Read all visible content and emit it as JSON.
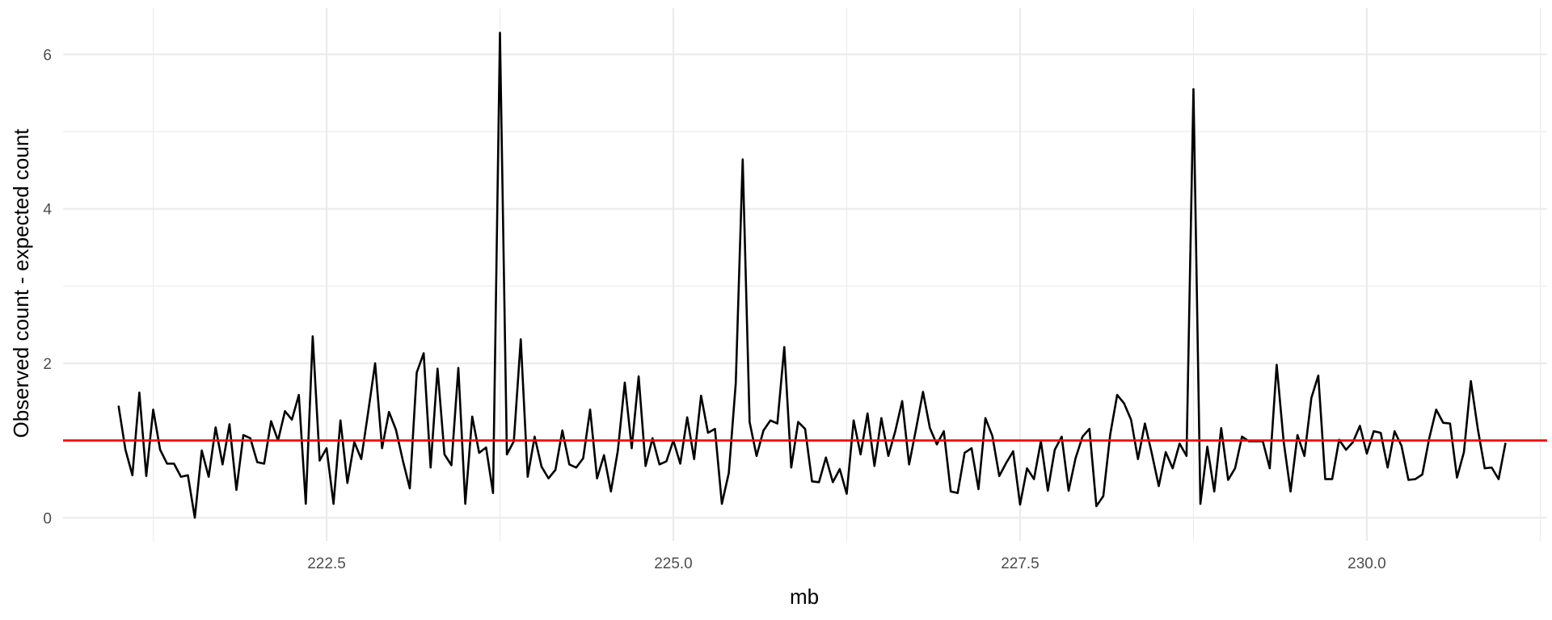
{
  "chart_data": {
    "type": "line",
    "title": "",
    "xlabel": "mb",
    "ylabel": "Observed count - expected count",
    "xlim": [
      220.6,
      231.3
    ],
    "ylim": [
      -0.3,
      6.6
    ],
    "x_ticks": [
      222.5,
      225.0,
      227.5,
      230.0
    ],
    "x_tick_labels": [
      "222.5",
      "225.0",
      "227.5",
      "230.0"
    ],
    "y_ticks": [
      0,
      2,
      4,
      6
    ],
    "y_tick_labels": [
      "0",
      "2",
      "4",
      "6"
    ],
    "grid": true,
    "theme": "minimal",
    "line_color": "#000000",
    "reference_line": {
      "y": 1,
      "color": "#ff0000"
    },
    "x_start": 221.0,
    "x_step": 0.05,
    "values": [
      1.45,
      0.88,
      0.55,
      1.62,
      0.54,
      1.4,
      0.88,
      0.7,
      0.7,
      0.53,
      0.55,
      0.0,
      0.87,
      0.53,
      1.17,
      0.69,
      1.21,
      0.36,
      1.07,
      1.03,
      0.72,
      0.7,
      1.25,
      1.0,
      1.38,
      1.27,
      1.59,
      0.18,
      2.35,
      0.74,
      0.9,
      0.18,
      1.26,
      0.45,
      0.98,
      0.76,
      1.37,
      2.0,
      0.9,
      1.37,
      1.14,
      0.74,
      0.38,
      1.88,
      2.13,
      0.65,
      1.93,
      0.82,
      0.68,
      1.94,
      0.18,
      1.31,
      0.84,
      0.91,
      0.32,
      6.28,
      0.82,
      0.99,
      2.31,
      0.53,
      1.05,
      0.66,
      0.51,
      0.62,
      1.13,
      0.69,
      0.65,
      0.77,
      1.4,
      0.51,
      0.81,
      0.34,
      0.87,
      1.75,
      0.9,
      1.83,
      0.67,
      1.03,
      0.69,
      0.73,
      1.0,
      0.7,
      1.3,
      0.76,
      1.58,
      1.1,
      1.15,
      0.18,
      0.58,
      1.74,
      4.64,
      1.24,
      0.8,
      1.13,
      1.26,
      1.22,
      2.21,
      0.65,
      1.24,
      1.15,
      0.47,
      0.46,
      0.78,
      0.46,
      0.63,
      0.31,
      1.26,
      0.82,
      1.35,
      0.67,
      1.29,
      0.8,
      1.12,
      1.51,
      0.69,
      1.15,
      1.63,
      1.16,
      0.95,
      1.12,
      0.34,
      0.32,
      0.84,
      0.9,
      0.37,
      1.29,
      1.06,
      0.54,
      0.71,
      0.86,
      0.17,
      0.64,
      0.5,
      0.99,
      0.35,
      0.88,
      1.05,
      0.35,
      0.77,
      1.05,
      1.15,
      0.15,
      0.28,
      1.08,
      1.59,
      1.48,
      1.27,
      0.76,
      1.22,
      0.83,
      0.41,
      0.85,
      0.64,
      0.96,
      0.8,
      5.55,
      0.18,
      0.92,
      0.34,
      1.16,
      0.49,
      0.64,
      1.05,
      0.99,
      0.99,
      0.99,
      0.64,
      1.98,
      0.99,
      0.34,
      1.07,
      0.8,
      1.55,
      1.84,
      0.5,
      0.5,
      1.01,
      0.88,
      0.98,
      1.19,
      0.83,
      1.12,
      1.1,
      0.65,
      1.12,
      0.93,
      0.49,
      0.5,
      0.56,
      1.03,
      1.4,
      1.23,
      1.22,
      0.52,
      0.85,
      1.77,
      1.15,
      0.64,
      0.65,
      0.5,
      0.97
    ]
  }
}
